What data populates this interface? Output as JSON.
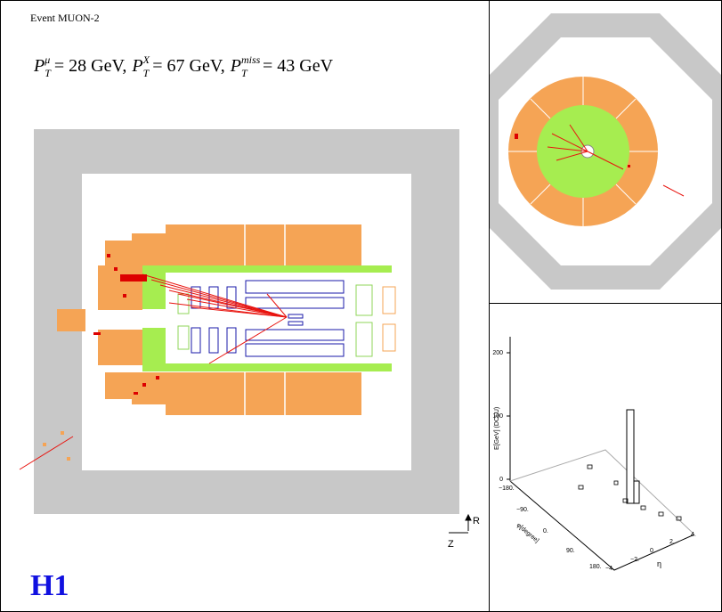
{
  "event": {
    "title": "Event MUON-2",
    "momenta": [
      {
        "symbol": "P",
        "sub": "T",
        "sup": "μ",
        "value": "= 28 GeV,"
      },
      {
        "symbol": "P",
        "sub": "T",
        "sup": "X",
        "value": "= 67 GeV,"
      },
      {
        "symbol": "P",
        "sub": "T",
        "sup": "miss",
        "value": "= 43 GeV"
      }
    ],
    "logo": "H1",
    "axes": {
      "vertical": "R",
      "horizontal": "Z"
    }
  },
  "lego": {
    "energy_label": "E[GeV] (DCLU)",
    "energy_ticks": [
      "200",
      "100",
      "0"
    ],
    "phi_label": "φ[degree]",
    "phi_ticks": [
      "−180.",
      "−90.",
      "0.",
      "90.",
      "180."
    ],
    "eta_label": "η",
    "eta_ticks": [
      "−4.",
      "−2.",
      "0.",
      "2.",
      "4."
    ]
  }
}
